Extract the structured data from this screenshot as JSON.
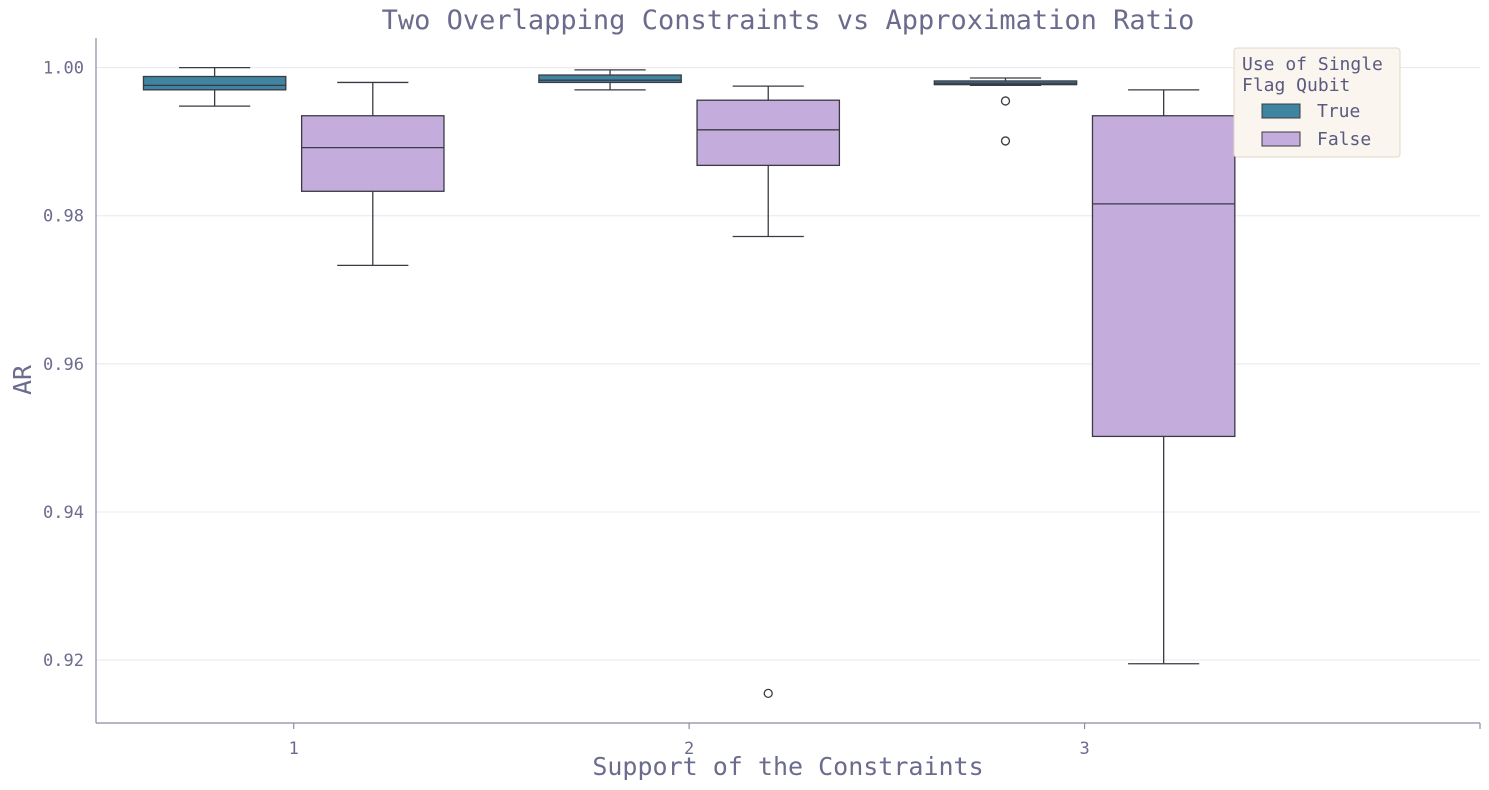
{
  "chart_data": {
    "type": "box",
    "title": "Two Overlapping Constraints vs Approximation Ratio",
    "xlabel": "Support of the Constraints",
    "ylabel": "AR",
    "categories": [
      "1",
      "2",
      "3"
    ],
    "ylim": [
      0.9115,
      1.004
    ],
    "yticks": [
      0.92,
      0.94,
      0.96,
      0.98,
      1.0
    ],
    "ytick_labels": [
      "0.92",
      "0.94",
      "0.96",
      "0.98",
      "1.00"
    ],
    "grid": "horizontal",
    "legend": {
      "title_lines": [
        "Use of Single",
        "Flag Qubit"
      ],
      "placement": "top-right"
    },
    "series": [
      {
        "name": "True",
        "color": "#3f84a0",
        "boxes": [
          {
            "category": "1",
            "whislo": 0.9948,
            "q1": 0.997,
            "median": 0.9976,
            "q3": 0.9988,
            "whishi": 1.0,
            "fliers": []
          },
          {
            "category": "2",
            "whislo": 0.997,
            "q1": 0.998,
            "median": 0.9983,
            "q3": 0.999,
            "whishi": 0.9997,
            "fliers": []
          },
          {
            "category": "3",
            "whislo": 0.9976,
            "q1": 0.9977,
            "median": 0.9979,
            "q3": 0.9982,
            "whishi": 0.9986,
            "fliers": [
              0.9955,
              0.9901
            ]
          }
        ]
      },
      {
        "name": "False",
        "color": "#c4addc",
        "boxes": [
          {
            "category": "1",
            "whislo": 0.9733,
            "q1": 0.9833,
            "median": 0.9892,
            "q3": 0.9935,
            "whishi": 0.998,
            "fliers": []
          },
          {
            "category": "2",
            "whislo": 0.9772,
            "q1": 0.9868,
            "median": 0.9916,
            "q3": 0.9956,
            "whishi": 0.9975,
            "fliers": [
              0.9155
            ]
          },
          {
            "category": "3",
            "whislo": 0.9195,
            "q1": 0.9502,
            "median": 0.9816,
            "q3": 0.9935,
            "whishi": 0.997,
            "fliers": []
          }
        ]
      }
    ]
  }
}
